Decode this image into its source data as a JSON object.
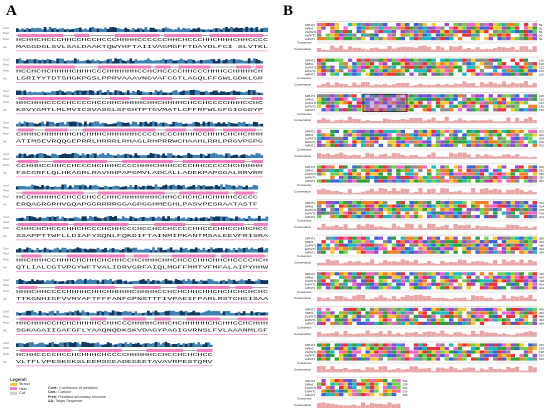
{
  "panels": [
    {
      "letter": "A"
    },
    {
      "letter": "B"
    }
  ],
  "panel_a": {
    "track_labels": [
      "Conf.",
      "Pred.",
      "Pred.",
      "AA"
    ],
    "sequence_lines": [
      "MAGGDGLSVLSALDAAKTQWYHFTAIIVAGMGFFTDAYDLFCI SLVTKL",
      "LGRIYYTDTSHGKPGSLPPRVAAAVNGVAFCGTLAGQLFFGWLGDKLGR",
      "KSVYGMTLMLMVICSVASGLSFGHTPTGVMATLCFFRFWLGFGIGGDYP",
      "ATIMSEVRQQGEPRRLHRRRLRHAGLRHPRRWCHAAHLRRLPRGVPGPG",
      "FSCGRFLQLHKAGRLRAVHHPAPGMVLADCALLADEKPAPGGALRRVRR",
      "ERQAGRGRHVGQAPGGRRRRGGAGPGGHMEGHLPASVPESRAATASTF",
      "SSAPPTTWFLLDIAFYSQNLFQKDIFTAINMIPKANTMSALEEVFRISRA",
      "QTLIALCGTVPGYWFTVALIDRVGRFAIQLMGFFMMTVFMFALAIPYHHW",
      "TTKGNHIGFVVMYAFTFFFANFGPNSTTFIVPAEIFPARLRSTCHGISAA",
      "SGKAGAIIGAFGFLYAAQNQDKSKVDAGYPAGIGVRNSLFVLAAANMLGF",
      "VLTFLVPESKGKSLEEMSGEADEGEETAVAVRPESTQMV"
    ],
    "legend": {
      "title": "Legend:",
      "items": [
        {
          "label": "Strand",
          "color": "#f6c945"
        },
        {
          "label": "Helix",
          "color": "#f27fc2"
        },
        {
          "label": "Coil",
          "color": "#d0d0d0"
        }
      ],
      "keys": [
        {
          "abbr": "Conf.:",
          "desc": "Confidence of prediction"
        },
        {
          "abbr": "Cart.:",
          "desc": "Cartoon"
        },
        {
          "abbr": "Pred:",
          "desc": "Predicted secondary structure"
        },
        {
          "abbr": "AA:",
          "desc": "Target Sequence"
        }
      ]
    }
  },
  "panel_b": {
    "sequence_names": [
      "SlPHT1",
      "SlPht1",
      "ZmPHT1",
      "ExPHT1",
      "AtPHT1"
    ],
    "consensus_label": "Consensus",
    "conservation_label": "Conservation",
    "block_end_numbers": [
      [
        "50",
        "50",
        "50",
        "50",
        "50"
      ],
      [
        "102",
        "102",
        "102",
        "102",
        "102"
      ],
      [
        "150",
        "150",
        "152",
        "150",
        "150"
      ],
      [
        "202",
        "202",
        "204",
        "202",
        "202"
      ],
      [
        "252",
        "252",
        "254",
        "252",
        "252"
      ],
      [
        "316",
        "314",
        "318",
        "314",
        "314"
      ],
      [
        "366",
        "364",
        "368",
        "364",
        "364"
      ],
      [
        "416",
        "414",
        "418",
        "414",
        "414"
      ],
      [
        "466",
        "464",
        "468",
        "464",
        "464"
      ],
      [
        "516",
        "514",
        "518",
        "514",
        "514"
      ],
      [
        "541",
        "539",
        "543",
        "539",
        "539"
      ]
    ]
  },
  "colors": {
    "helix": "#f27fc2",
    "strand": "#f6c945",
    "confidence": "#3d7fb0",
    "confidence_dark": "#10375c",
    "conservation": "#e8a6a6",
    "aa_palette": [
      "#e7333a",
      "#3d63d6",
      "#2fa13a",
      "#f3c632",
      "#9a4cd0",
      "#1fb7bf",
      "#f07f25",
      "#ef68c1",
      "#8a8a8a",
      "#6fcf4e"
    ]
  }
}
